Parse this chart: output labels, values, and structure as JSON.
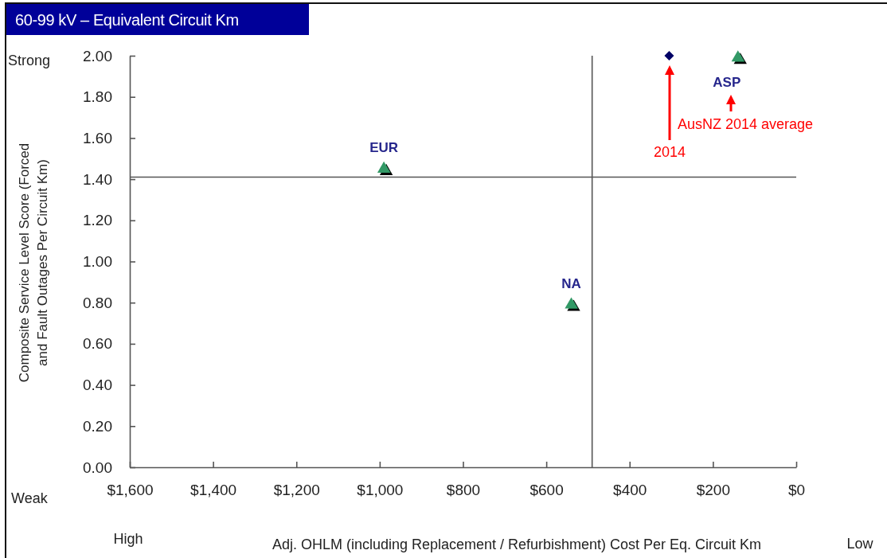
{
  "chart_data": {
    "type": "scatter",
    "title": "60-99 kV – Equivalent Circuit Km",
    "xlabel": "Adj. OHLM (including Replacement / Refurbishment) Cost Per Eq. Circuit Km",
    "ylabel": "Composite Service Level Score (Forced and Fault Outages Per Circuit Km)",
    "xlim": [
      1600,
      0
    ],
    "xticks": [
      {
        "value": 1600,
        "label": "$1,600"
      },
      {
        "value": 1400,
        "label": "$1,400"
      },
      {
        "value": 1200,
        "label": "$1,200"
      },
      {
        "value": 1000,
        "label": "$1,000"
      },
      {
        "value": 800,
        "label": "$800"
      },
      {
        "value": 600,
        "label": "$600"
      },
      {
        "value": 400,
        "label": "$400"
      },
      {
        "value": 200,
        "label": "$200"
      },
      {
        "value": 0,
        "label": "$0"
      }
    ],
    "ylim": [
      0,
      2
    ],
    "yticks": [
      {
        "value": 0,
        "label": "0.00"
      },
      {
        "value": 0.2,
        "label": "0.20"
      },
      {
        "value": 0.4,
        "label": "0.40"
      },
      {
        "value": 0.6,
        "label": "0.60"
      },
      {
        "value": 0.8,
        "label": "0.80"
      },
      {
        "value": 1,
        "label": "1.00"
      },
      {
        "value": 1.2,
        "label": "1.20"
      },
      {
        "value": 1.4,
        "label": "1.40"
      },
      {
        "value": 1.6,
        "label": "1.60"
      },
      {
        "value": 1.8,
        "label": "1.80"
      },
      {
        "value": 2,
        "label": "2.00"
      }
    ],
    "marker": "triangle",
    "series": [
      {
        "name": "EUR",
        "color": "#339966",
        "x": [
          990
        ],
        "values": [
          1.45
        ]
      },
      {
        "name": "NA",
        "color": "#339966",
        "x": [
          540
        ],
        "values": [
          0.79
        ]
      },
      {
        "color": "#000066",
        "x": [
          305
        ],
        "values": [
          2.0
        ],
        "marker": "diamond"
      },
      {
        "name": "ASP",
        "color": "#339966",
        "x": [
          140
        ],
        "values": [
          1.99
        ]
      }
    ],
    "ref_lines": [
      {
        "axis": "y",
        "value": 1.41,
        "color": "#555555"
      },
      {
        "axis": "x",
        "value": 490,
        "color": "#555555"
      }
    ],
    "annotations": [
      "Strong",
      "Weak",
      "High",
      "Low",
      "2014",
      "AusNZ 2014 average"
    ]
  }
}
